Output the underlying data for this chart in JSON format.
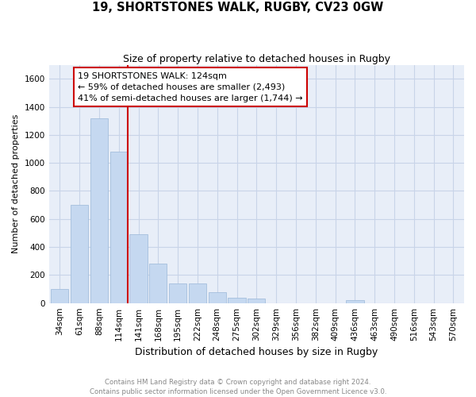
{
  "title": "19, SHORTSTONES WALK, RUGBY, CV23 0GW",
  "subtitle": "Size of property relative to detached houses in Rugby",
  "xlabel": "Distribution of detached houses by size in Rugby",
  "ylabel": "Number of detached properties",
  "categories": [
    "34sqm",
    "61sqm",
    "88sqm",
    "114sqm",
    "141sqm",
    "168sqm",
    "195sqm",
    "222sqm",
    "248sqm",
    "275sqm",
    "302sqm",
    "329sqm",
    "356sqm",
    "382sqm",
    "409sqm",
    "436sqm",
    "463sqm",
    "490sqm",
    "516sqm",
    "543sqm",
    "570sqm"
  ],
  "values": [
    100,
    700,
    1320,
    1080,
    490,
    280,
    140,
    140,
    75,
    40,
    35,
    0,
    0,
    0,
    0,
    20,
    0,
    0,
    0,
    0,
    0
  ],
  "bar_color": "#c5d8f0",
  "bar_edge_color": "#9ab8d8",
  "vline_x_index": 3.45,
  "vline_color": "#cc0000",
  "annotation_text": "19 SHORTSTONES WALK: 124sqm\n← 59% of detached houses are smaller (2,493)\n41% of semi-detached houses are larger (1,744) →",
  "annotation_box_facecolor": "#ffffff",
  "annotation_box_edgecolor": "#cc0000",
  "ylim": [
    0,
    1700
  ],
  "yticks": [
    0,
    200,
    400,
    600,
    800,
    1000,
    1200,
    1400,
    1600
  ],
  "footnote": "Contains HM Land Registry data © Crown copyright and database right 2024.\nContains public sector information licensed under the Open Government Licence v3.0.",
  "grid_color": "#c8d4e8",
  "background_color": "#e8eef8",
  "title_fontsize": 10.5,
  "subtitle_fontsize": 9,
  "ylabel_fontsize": 8,
  "xlabel_fontsize": 9,
  "tick_fontsize": 7.5,
  "annot_fontsize": 8
}
